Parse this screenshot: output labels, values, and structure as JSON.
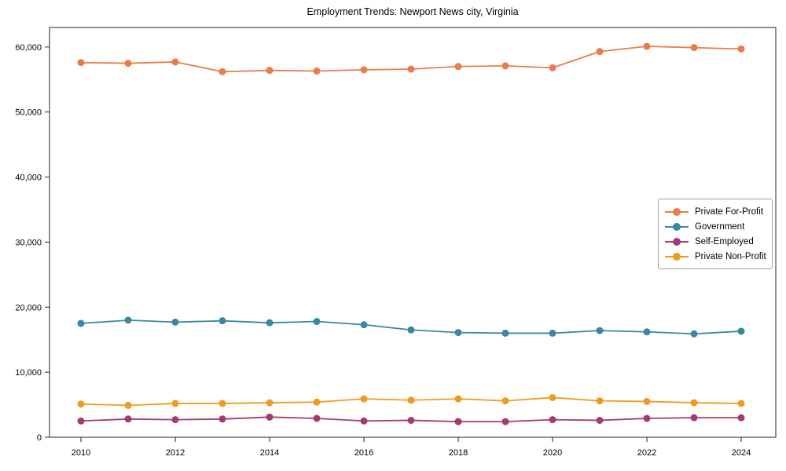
{
  "title": "Employment Trends: Newport News city, Virginia",
  "chart_data": {
    "type": "line",
    "title": "Employment Trends: Newport News city, Virginia",
    "x": [
      2010,
      2011,
      2012,
      2013,
      2014,
      2015,
      2016,
      2017,
      2018,
      2019,
      2020,
      2021,
      2022,
      2023,
      2024
    ],
    "series": [
      {
        "name": "Private For-Profit",
        "color": "#e87d4b",
        "values": [
          57600,
          57500,
          57700,
          56200,
          56400,
          56300,
          56500,
          56600,
          57000,
          57100,
          56800,
          59300,
          60100,
          59900,
          59700
        ]
      },
      {
        "name": "Government",
        "color": "#3a87a4",
        "values": [
          17500,
          18000,
          17700,
          17900,
          17600,
          17800,
          17300,
          16500,
          16100,
          16000,
          16000,
          16400,
          16200,
          15900,
          16300
        ]
      },
      {
        "name": "Self-Employed",
        "color": "#a23b72",
        "values": [
          2500,
          2800,
          2700,
          2800,
          3100,
          2900,
          2500,
          2600,
          2400,
          2400,
          2700,
          2600,
          2900,
          3000,
          3000
        ]
      },
      {
        "name": "Private Non-Profit",
        "color": "#ef9b20",
        "values": [
          5100,
          4900,
          5200,
          5200,
          5300,
          5400,
          5900,
          5700,
          5900,
          5600,
          6100,
          5600,
          5500,
          5300,
          5200
        ]
      }
    ],
    "ylim": [
      0,
      63000
    ],
    "y_ticks": [
      0,
      10000,
      20000,
      30000,
      40000,
      50000,
      60000
    ],
    "y_tick_labels": [
      "0",
      "10,000",
      "20,000",
      "30,000",
      "40,000",
      "50,000",
      "60,000"
    ],
    "x_ticks": [
      2010,
      2012,
      2014,
      2016,
      2018,
      2020,
      2022,
      2024
    ],
    "x_tick_labels": [
      "2010",
      "2012",
      "2014",
      "2016",
      "2018",
      "2020",
      "2022",
      "2024"
    ],
    "grid": false,
    "legend_position": "center-right",
    "marker": "circle",
    "spine_color": "#262626"
  }
}
